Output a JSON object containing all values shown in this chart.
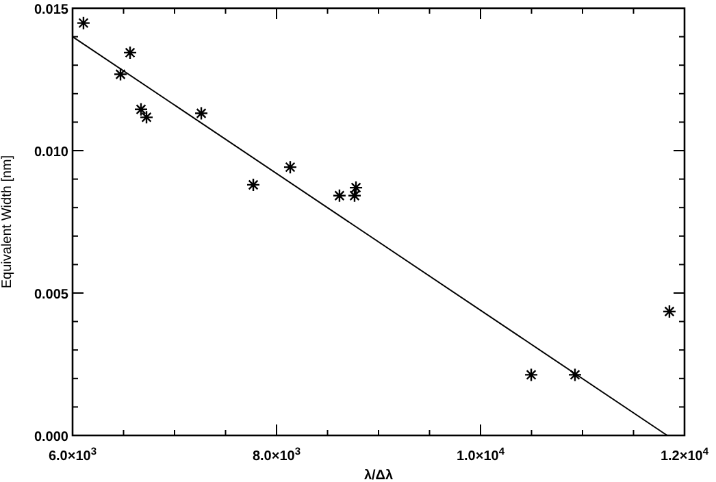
{
  "chart_data": {
    "type": "scatter",
    "xlabel": "λ/Δλ",
    "ylabel": "Equivalent Width [nm]",
    "xlim": [
      6000,
      12000
    ],
    "xticks": [
      {
        "value": 6000,
        "label": "6.0×10$^{3}$"
      },
      {
        "value": 6500,
        "label": null
      },
      {
        "value": 7000,
        "label": null
      },
      {
        "value": 7500,
        "label": null
      },
      {
        "value": 8000,
        "label": "8.0×10$^{3}$"
      },
      {
        "value": 8500,
        "label": null
      },
      {
        "value": 9000,
        "label": null
      },
      {
        "value": 9500,
        "label": null
      },
      {
        "value": 10000,
        "label": "1.0×10$^{4}$"
      },
      {
        "value": 10500,
        "label": null
      },
      {
        "value": 11000,
        "label": null
      },
      {
        "value": 11500,
        "label": null
      },
      {
        "value": 12000,
        "label": "1.2×10$^{4}$"
      }
    ],
    "ylim": [
      0,
      0.015
    ],
    "yticks": [
      {
        "value": 0,
        "label": "0.000"
      },
      {
        "value": 0.001,
        "label": null
      },
      {
        "value": 0.002,
        "label": null
      },
      {
        "value": 0.003,
        "label": null
      },
      {
        "value": 0.004,
        "label": null
      },
      {
        "value": 0.005,
        "label": "0.005"
      },
      {
        "value": 0.006,
        "label": null
      },
      {
        "value": 0.007,
        "label": null
      },
      {
        "value": 0.008,
        "label": null
      },
      {
        "value": 0.009,
        "label": null
      },
      {
        "value": 0.01,
        "label": "0.010"
      },
      {
        "value": 0.011,
        "label": null
      },
      {
        "value": 0.012,
        "label": null
      },
      {
        "value": 0.013,
        "label": null
      },
      {
        "value": 0.014,
        "label": null
      },
      {
        "value": 0.015,
        "label": "0.015"
      }
    ],
    "grid": false,
    "series": [
      {
        "marker": "cross",
        "color": "#000000",
        "x": [
          6107,
          6470,
          6564,
          6671,
          6725,
          7262,
          7772,
          8134,
          8617,
          8765,
          8779,
          10497,
          10926,
          11852
        ],
        "values": [
          0.01448,
          0.01268,
          0.01344,
          0.01145,
          0.01117,
          0.01131,
          0.0088,
          0.00942,
          0.00842,
          0.00842,
          0.0087,
          0.00213,
          0.00213,
          0.00435
        ]
      },
      {
        "type": "line",
        "color": "#000000",
        "line_style": "solid",
        "x": [
          6000,
          11830
        ],
        "values": [
          0.014,
          0
        ]
      }
    ]
  }
}
